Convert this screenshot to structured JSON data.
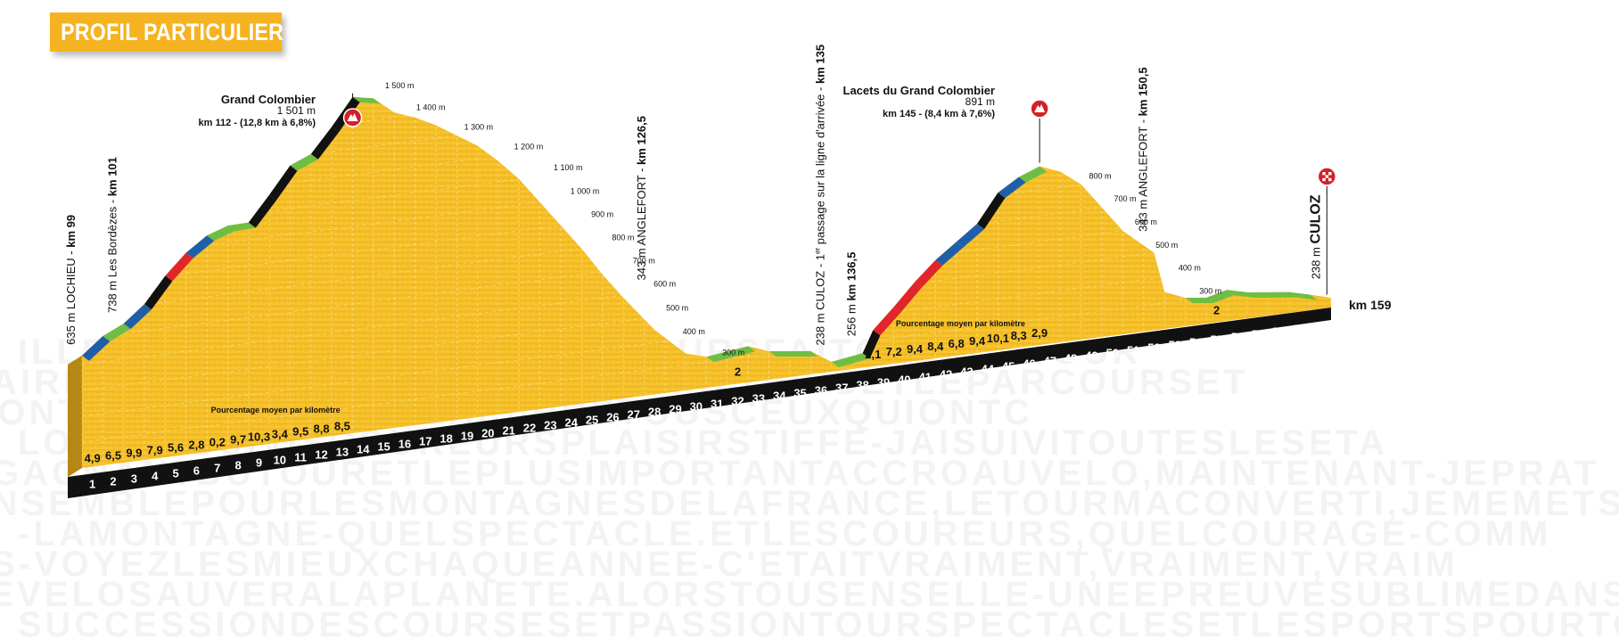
{
  "header": {
    "title": "PROFIL PARTICULIER"
  },
  "colors": {
    "terrain": "#f4c12c",
    "terrain_dark": "#d99c12",
    "base": "#111111",
    "cut_face": "#b68714",
    "grade_black": "#111111",
    "grade_red": "#e0262b",
    "grade_blue": "#1f5faa",
    "grade_green": "#6fbe44",
    "summit_marker": "#d42027"
  },
  "chart_data": {
    "type": "area",
    "title": "PROFIL PARTICULIER",
    "xlabel": "",
    "ylabel": "",
    "xlim": [
      99,
      159
    ],
    "ylim": [
      200,
      1600
    ],
    "x_ticks": [
      "1",
      "2",
      "3",
      "4",
      "5",
      "6",
      "7",
      "8",
      "9",
      "10",
      "11",
      "12",
      "13",
      "14",
      "15",
      "16",
      "17",
      "18",
      "19",
      "20",
      "21",
      "22",
      "23",
      "24",
      "25",
      "26",
      "27",
      "28",
      "29",
      "30",
      "31",
      "32",
      "33",
      "34",
      "35",
      "36",
      "37",
      "38",
      "39",
      "40",
      "41",
      "42",
      "43",
      "44",
      "45",
      "46",
      "47",
      "48",
      "49",
      "50",
      "51",
      "52",
      "53",
      "54",
      "55",
      "56",
      "57",
      "58",
      "59"
    ],
    "end_label": "km 159",
    "profile": {
      "km": [
        99,
        100,
        101,
        102,
        103,
        104,
        105,
        106,
        107,
        108,
        109,
        110,
        111,
        112,
        113,
        114,
        115,
        116,
        117,
        118,
        119,
        120,
        121,
        122,
        123,
        124,
        125,
        126.5,
        128,
        129,
        130,
        131,
        132,
        133,
        134,
        135,
        136.5,
        137,
        138,
        139,
        140,
        141,
        142,
        143,
        144,
        145,
        146,
        147,
        148,
        149,
        150.5,
        151,
        152,
        153,
        154,
        155,
        156,
        157,
        158,
        159
      ],
      "alt": [
        635,
        700,
        738,
        803,
        902,
        981,
        1037,
        1065,
        1067,
        1164,
        1267,
        1301,
        1396,
        1501,
        1485,
        1420,
        1390,
        1350,
        1300,
        1250,
        1180,
        1100,
        1000,
        900,
        800,
        690,
        590,
        450,
        343,
        320,
        330,
        340,
        310,
        300,
        290,
        238,
        256,
        340,
        420,
        505,
        580,
        640,
        700,
        810,
        860,
        891,
        860,
        800,
        700,
        600,
        500,
        343,
        310,
        300,
        320,
        300,
        290,
        280,
        260,
        238
      ]
    },
    "segment_grades": {
      "climb1": [
        "4,9",
        "6,5",
        "9,9",
        "7,9",
        "5,6",
        "2,8",
        "0,2",
        "9,7",
        "10,3",
        "3,4",
        "9,5",
        "8,8",
        "8,5"
      ],
      "climb2": [
        "2,1",
        "7,2",
        "9,4",
        "8,4",
        "6,8",
        "9,4",
        "10,1",
        "8,3",
        "2,9"
      ],
      "flat_labels": [
        "2",
        "2"
      ]
    },
    "legend_note": "Pourcentage moyen par kilomètre",
    "altitude_labels": [
      "1 500 m",
      "1 400 m",
      "1 300 m",
      "1 200 m",
      "1 100 m",
      "1 000 m",
      "900 m",
      "800 m",
      "700 m",
      "600 m",
      "500 m",
      "400 m",
      "300 m"
    ],
    "altitude_labels_right": [
      "800 m",
      "700 m",
      "600 m",
      "500 m",
      "400 m",
      "300 m"
    ],
    "annotations": [
      {
        "id": "lochieu",
        "lines": [
          "635 m LOCHIEU - ",
          "km 99"
        ]
      },
      {
        "id": "bordezes",
        "lines": [
          "738 m Les Bordèzes - ",
          "km 101"
        ]
      },
      {
        "id": "anglefort1",
        "lines": [
          "343 m ANGLEFORT - ",
          "km 126,5"
        ]
      },
      {
        "id": "culoz1",
        "lines": [
          "238 m CULOZ - 1",
          "er",
          " passage sur la ligne d'arrivée - ",
          "km 135"
        ]
      },
      {
        "id": "km1365",
        "lines": [
          "256 m ",
          "km 136,5"
        ]
      },
      {
        "id": "anglefort2",
        "lines": [
          "343 m ANGLEFORT - ",
          "km 150,5"
        ]
      },
      {
        "id": "culoz2",
        "lines": [
          "238 m ",
          "CULOZ"
        ]
      }
    ],
    "summits": [
      {
        "name": "Grand Colombier",
        "alt": "1 501 m",
        "detail": "km 112 - (12,8 km à 6,8%)"
      },
      {
        "name": "Lacets du Grand Colombier",
        "alt": "891 m",
        "detail": "km 145 - (8,4 km à 7,6%)"
      }
    ],
    "watermark_rows": [
      "ILLEURSRENCONTRESETPARCOURSFAITCEUXDUTOUR",
      "AIRDETOUSCEUXQUIMONTFAITPARCOURSETLEPARCOURSET",
      "MONTAGNESPOURLEPLAISIRDETOUSCEUXQUIONTC",
      "LOCHEUSUIVISCOUREURSPLAISIRSTIFFE-JAISUIVITOUTESLESETA",
      "GAGNANTDUTOURETLEPLUSIMPORTANTACCROAUVELO,MAINTENANT-JEPRAT",
      "ENSEMBLEPOURLESMONTAGNESDELAFRANCE,LETOURMACONVERTI,JEMEMETSAUVELO,C",
      "-LAMONTAGNE-QUELSPECTACLE.ETLESCOUREURS,QUELCOURAGE-COMM",
      "S-VOYEZLESMIEUXCHAQUEANNEE-C'ETAITVRAIMENT,VRAIMENT,VRAIM",
      "LEVELOSAUVERALAPLANETE.ALORSTOUSENSELLE-UNEEPREUVESUBLIMEDANS",
      "SUCCESSIONDESCOURSESETPASSIONTOURSPECTACLESETLESPORTSPOURTOUS"
    ]
  }
}
